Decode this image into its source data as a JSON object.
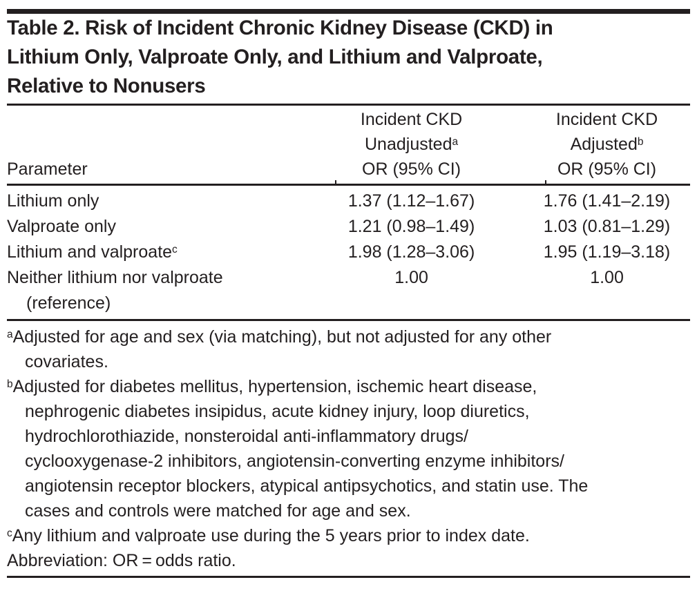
{
  "colors": {
    "text": "#231f20",
    "rule": "#231f20",
    "background": "#ffffff"
  },
  "title": "Table 2. Risk of Incident Chronic Kidney Disease (CKD) in\nLithium Only, Valproate Only, and Lithium and Valproate,\nRelative to Nonusers",
  "table": {
    "header": {
      "param_label": "Parameter",
      "unadjusted_col": {
        "line1": "Incident CKD",
        "line2": "Unadjusted",
        "marker": "a",
        "line3": "OR (95% CI)"
      },
      "adjusted_col": {
        "line1": "Incident CKD",
        "line2": "Adjusted",
        "marker": "b",
        "line3": "OR (95% CI)"
      }
    },
    "rows": [
      {
        "label": "Lithium only",
        "marker": "",
        "unadjusted": "1.37 (1.12–1.67)",
        "adjusted": "1.76 (1.41–2.19)"
      },
      {
        "label": "Valproate only",
        "marker": "",
        "unadjusted": "1.21 (0.98–1.49)",
        "adjusted": "1.03 (0.81–1.29)"
      },
      {
        "label": "Lithium and valproate",
        "marker": "c",
        "unadjusted": "1.98 (1.28–3.06)",
        "adjusted": "1.95 (1.19–3.18)"
      },
      {
        "label": "Neither lithium nor valproate\n(reference)",
        "marker": "",
        "unadjusted": "1.00",
        "adjusted": "1.00"
      }
    ]
  },
  "footnotes": [
    {
      "marker": "a",
      "text": "Adjusted for age and sex (via matching), but not adjusted for any other\ncovariates."
    },
    {
      "marker": "b",
      "text": "Adjusted for diabetes mellitus, hypertension, ischemic heart disease,\nnephrogenic diabetes insipidus, acute kidney injury, loop diuretics,\nhydrochlorothiazide, nonsteroidal anti-inflammatory drugs/\ncyclooxygenase-2 inhibitors, angiotensin-converting enzyme inhibitors/\nangiotensin receptor blockers, atypical antipsychotics, and statin use. The\ncases and controls were matched for age and sex."
    },
    {
      "marker": "c",
      "text": "Any lithium and valproate use during the 5 years prior to index date."
    }
  ],
  "abbreviation": "Abbreviation: OR = odds ratio."
}
